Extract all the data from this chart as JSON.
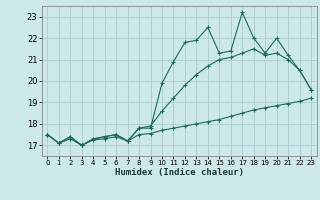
{
  "xlabel": "Humidex (Indice chaleur)",
  "xlim": [
    -0.5,
    23.5
  ],
  "ylim": [
    16.5,
    23.5
  ],
  "yticks": [
    17,
    18,
    19,
    20,
    21,
    22,
    23
  ],
  "xticks": [
    0,
    1,
    2,
    3,
    4,
    5,
    6,
    7,
    8,
    9,
    10,
    11,
    12,
    13,
    14,
    15,
    16,
    17,
    18,
    19,
    20,
    21,
    22,
    23
  ],
  "bg_color": "#cce8e8",
  "grid_color": "#aacccc",
  "line_color": "#1a6b5a",
  "line1_y": [
    17.5,
    17.1,
    17.4,
    17.0,
    17.3,
    17.4,
    17.5,
    17.2,
    17.8,
    17.8,
    19.9,
    20.9,
    21.8,
    21.9,
    22.5,
    21.3,
    21.4,
    23.2,
    22.0,
    21.3,
    22.0,
    21.2,
    20.5,
    19.6
  ],
  "line2_y": [
    17.5,
    17.1,
    17.4,
    17.0,
    17.3,
    17.4,
    17.5,
    17.2,
    17.8,
    17.9,
    18.6,
    19.2,
    19.8,
    20.3,
    20.7,
    21.0,
    21.1,
    21.3,
    21.5,
    21.2,
    21.3,
    21.0,
    20.5,
    19.6
  ],
  "line3_y": [
    17.5,
    17.1,
    17.3,
    17.0,
    17.25,
    17.3,
    17.4,
    17.2,
    17.5,
    17.55,
    17.7,
    17.8,
    17.9,
    18.0,
    18.1,
    18.2,
    18.35,
    18.5,
    18.65,
    18.75,
    18.85,
    18.95,
    19.05,
    19.2
  ]
}
